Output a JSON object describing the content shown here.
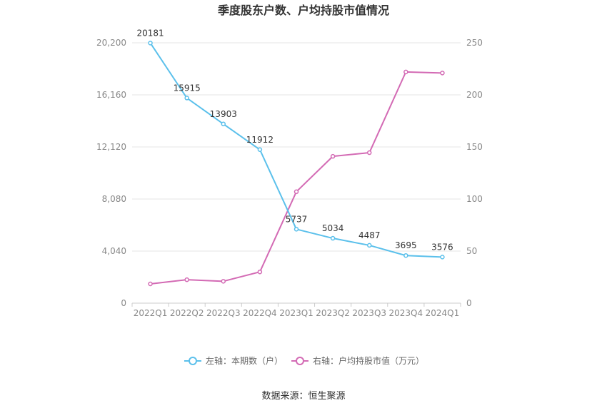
{
  "chart_data": {
    "type": "line",
    "title": "季度股东户数、户均持股市值情况",
    "categories": [
      "2022Q1",
      "2022Q2",
      "2022Q3",
      "2022Q4",
      "2023Q1",
      "2023Q2",
      "2023Q3",
      "2023Q4",
      "2024Q1"
    ],
    "left_axis": {
      "min": 0,
      "max": 20200,
      "ticks": [
        "0",
        "4,040",
        "8,080",
        "12,120",
        "16,160",
        "20,200"
      ]
    },
    "right_axis": {
      "min": 0,
      "max": 250,
      "ticks": [
        "0",
        "50",
        "100",
        "150",
        "200",
        "250"
      ]
    },
    "series": [
      {
        "name": "左轴：本期数（户）",
        "axis": "left",
        "color": "#5bc0eb",
        "values": [
          20181,
          15915,
          13903,
          11912,
          5737,
          5034,
          4487,
          3695,
          3576
        ],
        "labels": [
          "20181",
          "15915",
          "13903",
          "11912",
          "5737",
          "5034",
          "4487",
          "3695",
          "3576"
        ]
      },
      {
        "name": "右轴：户均持股市值（万元）",
        "axis": "right",
        "color": "#d36ab4",
        "values": [
          18.5,
          22.5,
          21,
          30,
          107,
          141,
          144.5,
          222,
          221
        ]
      }
    ],
    "grid": true,
    "legend_position": "bottom"
  },
  "footer": {
    "source": "数据来源：恒生聚源"
  }
}
